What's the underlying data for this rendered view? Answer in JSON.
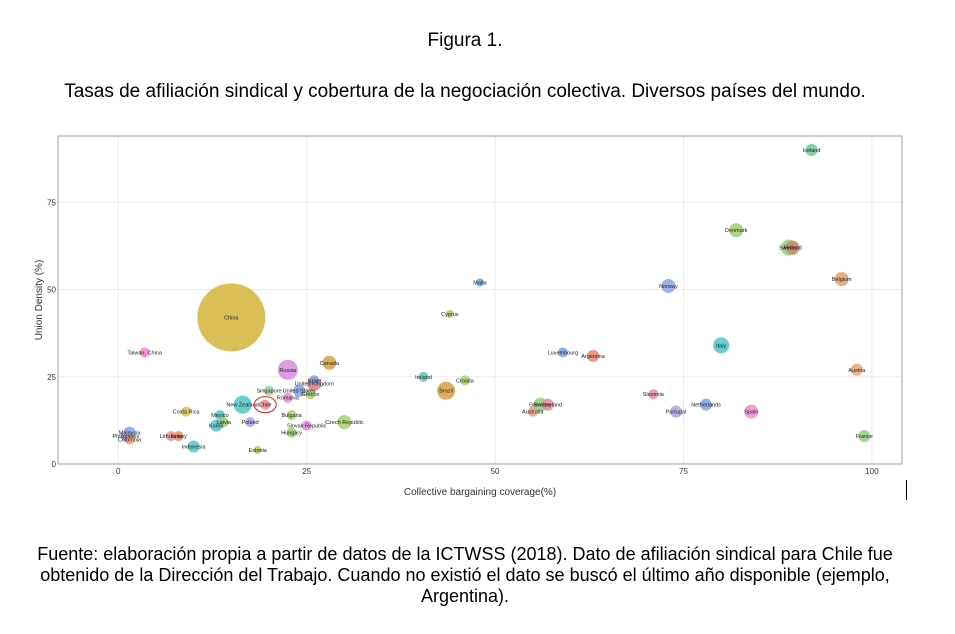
{
  "figure_label": "Figura 1.",
  "figure_title": "Tasas de afiliación sindical y cobertura de la negociación colectiva. Diversos países del mundo.",
  "source_note": "Fuente: elaboración propia a partir de datos de la ICTWSS (2018). Dato de afiliación sindical para Chile fue obtenido de la Dirección del Trabajo. Cuando no existió el dato se buscó el último año disponible (ejemplo, Argentina).",
  "chart_data": {
    "type": "scatter",
    "xlabel": "Collective bargaining coverage(%)",
    "ylabel": "Union Density (%)",
    "xlim": [
      -8,
      104
    ],
    "ylim": [
      0,
      94
    ],
    "xticks": [
      0,
      25,
      50,
      75,
      100
    ],
    "yticks": [
      0,
      25,
      50,
      75
    ],
    "grid": true,
    "highlight": "Chile",
    "points": [
      {
        "label": "Iceland",
        "x": 92,
        "y": 90,
        "size": 6,
        "color": "#6fc59a"
      },
      {
        "label": "Denmark",
        "x": 82,
        "y": 67,
        "size": 7,
        "color": "#9acd6a"
      },
      {
        "label": "Finland",
        "x": 89.5,
        "y": 62,
        "size": 7,
        "color": "#c98a6a"
      },
      {
        "label": "Sweden",
        "x": 89,
        "y": 62,
        "size": 8,
        "color": "#8fcf7a"
      },
      {
        "label": "Belgium",
        "x": 96,
        "y": 53,
        "size": 7,
        "color": "#e2a06a"
      },
      {
        "label": "Malta",
        "x": 48,
        "y": 52,
        "size": 4,
        "color": "#6aa9e0"
      },
      {
        "label": "Norway",
        "x": 73,
        "y": 51,
        "size": 7,
        "color": "#8aa6e6"
      },
      {
        "label": "Cyprus",
        "x": 44,
        "y": 43,
        "size": 4,
        "color": "#a8cc6a"
      },
      {
        "label": "China",
        "x": 15,
        "y": 42,
        "size": 34,
        "color": "#d4b43a"
      },
      {
        "label": "Italy",
        "x": 80,
        "y": 34,
        "size": 8,
        "color": "#4ec5c8"
      },
      {
        "label": "Taiwan, China",
        "x": 3.5,
        "y": 32,
        "size": 5,
        "color": "#f08ccf"
      },
      {
        "label": "Luxembourg",
        "x": 59,
        "y": 32,
        "size": 5,
        "color": "#7fa3e6"
      },
      {
        "label": "Argentina",
        "x": 63,
        "y": 31,
        "size": 6,
        "color": "#e88a6a"
      },
      {
        "label": "Canada",
        "x": 28,
        "y": 29,
        "size": 7,
        "color": "#d8a040"
      },
      {
        "label": "Russia",
        "x": 22.5,
        "y": 27,
        "size": 10,
        "color": "#d98ce0"
      },
      {
        "label": "Austria",
        "x": 98,
        "y": 27,
        "size": 6,
        "color": "#f0a07a"
      },
      {
        "label": "Ireland",
        "x": 40.5,
        "y": 25,
        "size": 5,
        "color": "#5fc8b0"
      },
      {
        "label": "Israel",
        "x": 26,
        "y": 24,
        "size": 5,
        "color": "#7fa3e6"
      },
      {
        "label": "Croatia",
        "x": 46,
        "y": 24,
        "size": 5,
        "color": "#a7d06a"
      },
      {
        "label": "United Kingdom",
        "x": 26,
        "y": 23,
        "size": 7,
        "color": "#e87a7a"
      },
      {
        "label": "United States",
        "x": 24,
        "y": 21,
        "size": 6,
        "color": "#7fa3e6"
      },
      {
        "label": "Brazil",
        "x": 43.5,
        "y": 21,
        "size": 9,
        "color": "#d8a040"
      },
      {
        "label": "Singapore",
        "x": 20,
        "y": 21,
        "size": 5,
        "color": "#9ad0a0"
      },
      {
        "label": "Greece",
        "x": 25.5,
        "y": 20,
        "size": 5,
        "color": "#a7d06a"
      },
      {
        "label": "Slovenia",
        "x": 71,
        "y": 20,
        "size": 5,
        "color": "#f08ca0"
      },
      {
        "label": "Romania",
        "x": 22.5,
        "y": 19,
        "size": 5,
        "color": "#e08ad0"
      },
      {
        "label": "New Zealand",
        "x": 16.5,
        "y": 17,
        "size": 9,
        "color": "#4ec5c8"
      },
      {
        "label": "Chile",
        "x": 19.5,
        "y": 17,
        "size": 5,
        "color": "#f08c8c"
      },
      {
        "label": "Switzerland",
        "x": 57,
        "y": 17,
        "size": 6,
        "color": "#e88a9a"
      },
      {
        "label": "Germany",
        "x": 56,
        "y": 17,
        "size": 7,
        "color": "#8fcf7a"
      },
      {
        "label": "Netherlands",
        "x": 78,
        "y": 17,
        "size": 6,
        "color": "#7fa3e6"
      },
      {
        "label": "Australia",
        "x": 55,
        "y": 15,
        "size": 5,
        "color": "#f0a07a"
      },
      {
        "label": "Costa Rica",
        "x": 9,
        "y": 15,
        "size": 5,
        "color": "#d8c050"
      },
      {
        "label": "Portugal",
        "x": 74,
        "y": 15,
        "size": 6,
        "color": "#a8a6e6"
      },
      {
        "label": "Spain",
        "x": 84,
        "y": 15,
        "size": 7,
        "color": "#f08ccf"
      },
      {
        "label": "Bulgaria",
        "x": 23,
        "y": 14,
        "size": 5,
        "color": "#a7d06a"
      },
      {
        "label": "Mexico",
        "x": 13.5,
        "y": 14,
        "size": 5,
        "color": "#4ec5c8"
      },
      {
        "label": "Poland",
        "x": 17.5,
        "y": 12,
        "size": 5,
        "color": "#a8a6e6"
      },
      {
        "label": "Latvia",
        "x": 14,
        "y": 12,
        "size": 5,
        "color": "#9acd6a"
      },
      {
        "label": "Czech Republic",
        "x": 30,
        "y": 12,
        "size": 7,
        "color": "#a7d06a"
      },
      {
        "label": "Slovak Republic",
        "x": 25,
        "y": 11,
        "size": 5,
        "color": "#e08ad0"
      },
      {
        "label": "Korea",
        "x": 13,
        "y": 11,
        "size": 6,
        "color": "#4ec5c8"
      },
      {
        "label": "Lithuania",
        "x": 7,
        "y": 8,
        "size": 5,
        "color": "#f08ca0"
      },
      {
        "label": "Turkey",
        "x": 8,
        "y": 8,
        "size": 5,
        "color": "#e88a6a"
      },
      {
        "label": "Hungary",
        "x": 23,
        "y": 9,
        "size": 5,
        "color": "#9acd6a"
      },
      {
        "label": "Malaysia",
        "x": 1.5,
        "y": 9,
        "size": 6,
        "color": "#7fa3e6"
      },
      {
        "label": "Philippines",
        "x": 1,
        "y": 8,
        "size": 5,
        "color": "#a8a6e6"
      },
      {
        "label": "Colombia",
        "x": 1.5,
        "y": 7,
        "size": 5,
        "color": "#f0a07a"
      },
      {
        "label": "France",
        "x": 99,
        "y": 8,
        "size": 6,
        "color": "#8fcf7a"
      },
      {
        "label": "Indonesia",
        "x": 10,
        "y": 5,
        "size": 6,
        "color": "#4ec5c8"
      },
      {
        "label": "Estonia",
        "x": 18.5,
        "y": 4,
        "size": 4,
        "color": "#a7d06a"
      }
    ]
  }
}
